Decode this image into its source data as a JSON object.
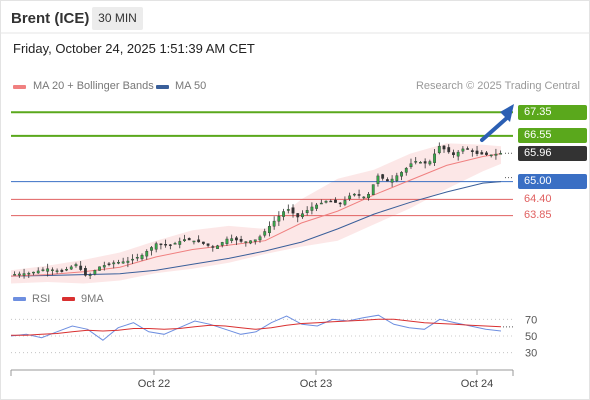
{
  "header": {
    "title": "Brent (ICE)",
    "interval": "30 MIN",
    "datetime": "Friday, October 24, 2025 1:51:39 AM CET"
  },
  "legend": {
    "ma20": "MA 20 + Bollinger Bands",
    "ma50": "MA 50",
    "credit": "Research © 2025 Trading Central",
    "rsi": "RSI",
    "ma9": "9MA"
  },
  "colors": {
    "candle": "#37a64a",
    "ma20": "#f08080",
    "ma50": "#3a5f9a",
    "bands": "#fbe3e3",
    "resistance": "#5aa81c",
    "support": "#e06060",
    "pivot": "#3a6fc4",
    "last": "#333333",
    "rsi": "#6e8fe0",
    "ma9": "#d93030",
    "arrow": "#2b5fb3"
  },
  "chart_data": [
    {
      "type": "candlestick",
      "x_labels": [
        "Oct 22",
        "Oct 23",
        "Oct 24"
      ],
      "ylim": [
        61.6,
        67.9
      ],
      "levels": [
        {
          "value": 67.35,
          "label": "67.35",
          "kind": "resistance"
        },
        {
          "value": 66.55,
          "label": "66.55",
          "kind": "resistance"
        },
        {
          "value": 65.96,
          "label": "65.96",
          "kind": "last"
        },
        {
          "value": 65.0,
          "label": "65.00",
          "kind": "pivot"
        },
        {
          "value": 64.4,
          "label": "64.40",
          "kind": "support"
        },
        {
          "value": 63.85,
          "label": "63.85",
          "kind": "support"
        }
      ],
      "price_path": [
        [
          0,
          61.85
        ],
        [
          10,
          61.9
        ],
        [
          20,
          62.05
        ],
        [
          28,
          61.95
        ],
        [
          36,
          62.2
        ],
        [
          42,
          61.75
        ],
        [
          48,
          62.1
        ],
        [
          56,
          62.25
        ],
        [
          64,
          62.3
        ],
        [
          72,
          62.5
        ],
        [
          80,
          62.9
        ],
        [
          88,
          62.85
        ],
        [
          96,
          63.05
        ],
        [
          104,
          62.95
        ],
        [
          112,
          62.75
        ],
        [
          120,
          63.1
        ],
        [
          128,
          62.95
        ],
        [
          136,
          63.05
        ],
        [
          144,
          63.6
        ],
        [
          152,
          64.1
        ],
        [
          158,
          63.8
        ],
        [
          166,
          64.15
        ],
        [
          174,
          64.35
        ],
        [
          182,
          64.25
        ],
        [
          188,
          64.6
        ],
        [
          196,
          64.45
        ],
        [
          202,
          65.2
        ],
        [
          208,
          65.0
        ],
        [
          216,
          65.35
        ],
        [
          222,
          65.7
        ],
        [
          230,
          65.6
        ],
        [
          236,
          66.2
        ],
        [
          244,
          65.9
        ],
        [
          250,
          66.15
        ],
        [
          256,
          65.95
        ],
        [
          264,
          65.9
        ],
        [
          270,
          65.96
        ]
      ],
      "ma20": [
        [
          0,
          61.8
        ],
        [
          20,
          61.85
        ],
        [
          40,
          61.95
        ],
        [
          60,
          62.1
        ],
        [
          80,
          62.45
        ],
        [
          100,
          62.7
        ],
        [
          120,
          62.85
        ],
        [
          140,
          63.0
        ],
        [
          160,
          63.6
        ],
        [
          180,
          64.0
        ],
        [
          200,
          64.55
        ],
        [
          220,
          65.05
        ],
        [
          240,
          65.55
        ],
        [
          260,
          65.85
        ],
        [
          270,
          65.95
        ]
      ],
      "ma50": [
        [
          0,
          61.8
        ],
        [
          20,
          61.82
        ],
        [
          40,
          61.85
        ],
        [
          60,
          61.88
        ],
        [
          80,
          62.0
        ],
        [
          100,
          62.2
        ],
        [
          120,
          62.4
        ],
        [
          140,
          62.65
        ],
        [
          160,
          62.95
        ],
        [
          180,
          63.4
        ],
        [
          200,
          63.9
        ],
        [
          220,
          64.3
        ],
        [
          240,
          64.65
        ],
        [
          260,
          64.95
        ],
        [
          270,
          65.0
        ]
      ],
      "band_upper": [
        [
          0,
          62.0
        ],
        [
          20,
          62.15
        ],
        [
          40,
          62.35
        ],
        [
          60,
          62.6
        ],
        [
          80,
          63.0
        ],
        [
          100,
          63.35
        ],
        [
          120,
          63.5
        ],
        [
          140,
          63.4
        ],
        [
          160,
          64.4
        ],
        [
          180,
          65.1
        ],
        [
          200,
          65.4
        ],
        [
          220,
          65.95
        ],
        [
          240,
          66.3
        ],
        [
          260,
          66.25
        ],
        [
          270,
          66.2
        ]
      ],
      "band_lower": [
        [
          0,
          61.55
        ],
        [
          20,
          61.6
        ],
        [
          40,
          61.55
        ],
        [
          60,
          61.65
        ],
        [
          80,
          61.9
        ],
        [
          100,
          62.05
        ],
        [
          120,
          62.25
        ],
        [
          140,
          62.55
        ],
        [
          160,
          62.8
        ],
        [
          180,
          63.0
        ],
        [
          200,
          63.55
        ],
        [
          220,
          64.1
        ],
        [
          240,
          64.75
        ],
        [
          260,
          65.35
        ],
        [
          270,
          65.6
        ]
      ]
    },
    {
      "type": "line",
      "series": [
        {
          "name": "RSI",
          "values": [
            50,
            52,
            48,
            55,
            62,
            58,
            45,
            60,
            66,
            55,
            52,
            60,
            68,
            64,
            58,
            52,
            55,
            66,
            74,
            64,
            62,
            70,
            68,
            72,
            75,
            64,
            60,
            58,
            70,
            66,
            62,
            58,
            56
          ]
        },
        {
          "name": "9MA",
          "values": [
            51,
            51,
            52,
            53,
            55,
            57,
            56,
            57,
            59,
            59,
            58,
            59,
            61,
            63,
            62,
            60,
            58,
            60,
            63,
            65,
            66,
            67,
            68,
            69,
            70,
            70,
            68,
            66,
            65,
            64,
            63,
            62,
            61
          ]
        }
      ],
      "ylim": [
        20,
        80
      ],
      "y_ticks": [
        "70",
        "50",
        "30"
      ]
    }
  ]
}
